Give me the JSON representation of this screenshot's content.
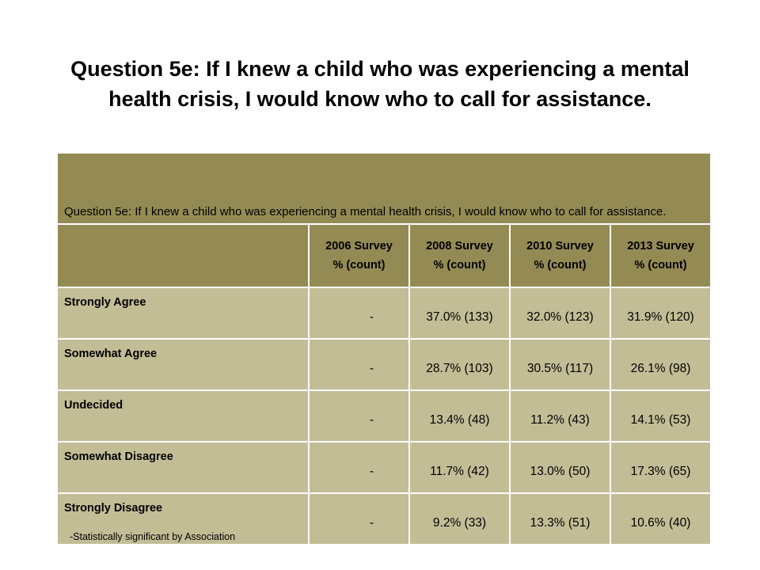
{
  "title": "Question 5e:   If I knew a child who was experiencing a mental health crisis, I would know who to call for assistance.",
  "table": {
    "caption": "Question 5e:   If I knew a child who was experiencing a mental health crisis, I would know who to call for assistance.",
    "columns": [
      {
        "line1": "2006 Survey",
        "line2": "% (count)"
      },
      {
        "line1": "2008 Survey",
        "line2": "% (count)"
      },
      {
        "line1": "2010 Survey",
        "line2": "% (count)"
      },
      {
        "line1": "2013 Survey",
        "line2": "% (count)"
      }
    ],
    "rows": [
      {
        "label": "Strongly Agree",
        "values": [
          "-",
          "37.0% (133)",
          "32.0% (123)",
          "31.9% (120)"
        ]
      },
      {
        "label": "Somewhat Agree",
        "values": [
          "-",
          "28.7% (103)",
          "30.5% (117)",
          "26.1% (98)"
        ]
      },
      {
        "label": "Undecided",
        "values": [
          "-",
          "13.4% (48)",
          "11.2% (43)",
          "14.1% (53)"
        ]
      },
      {
        "label": "Somewhat Disagree",
        "values": [
          "-",
          "11.7% (42)",
          "13.0% (50)",
          "17.3% (65)"
        ]
      },
      {
        "label": "Strongly Disagree",
        "values": [
          "-",
          "9.2% (33)",
          "13.3% (51)",
          "10.6% (40)"
        ]
      }
    ]
  },
  "footnote": "-Statistically significant by Association",
  "colors": {
    "header": "#948b54",
    "body": "#c3bd96"
  }
}
